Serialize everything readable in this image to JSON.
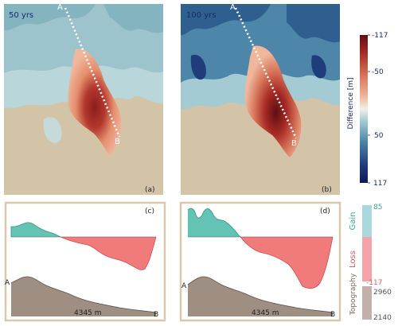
{
  "maps": [
    {
      "time_label": "50 yrs",
      "panel_label": "(a)",
      "point_a": "A",
      "point_b": "B"
    },
    {
      "time_label": "100 yrs",
      "panel_label": "(b)",
      "point_a": "A",
      "point_b": "B"
    }
  ],
  "colorbar": {
    "label": "Difference [m]",
    "ticks": [
      "-117",
      "-50",
      "50",
      "117"
    ],
    "colors": [
      "#0c1a5c",
      "#1f3d7a",
      "#2f5f8e",
      "#4d86a8",
      "#74a9be",
      "#a4cbd4",
      "#d6e8ea",
      "#f3dccf",
      "#efb89d",
      "#e58e6e",
      "#d0624a",
      "#b3382e",
      "#8d1d1d",
      "#5e0f12"
    ]
  },
  "profiles": [
    {
      "panel_label": "(c)",
      "distance_label": "4345 m",
      "point_a": "A",
      "point_b": "B"
    },
    {
      "panel_label": "(d)",
      "distance_label": "4345 m",
      "point_a": "A",
      "point_b": "B"
    }
  ],
  "legend": {
    "gain_label": "Gain",
    "gain_value": "85",
    "gain_color": "#4fb8a8",
    "loss_label": "Loss",
    "loss_value": "-117",
    "loss_color": "#f07a7a",
    "topo_label": "Topography",
    "topo_max": "2960",
    "topo_min": "2140",
    "topo_color": "#a6968a"
  },
  "colors": {
    "map_bg": "#d3c4a8",
    "frame": "#d9c8ad",
    "gain_fill": "#63c3b4",
    "loss_fill": "#f17b7b",
    "topo_fill": "#9f8f82"
  }
}
